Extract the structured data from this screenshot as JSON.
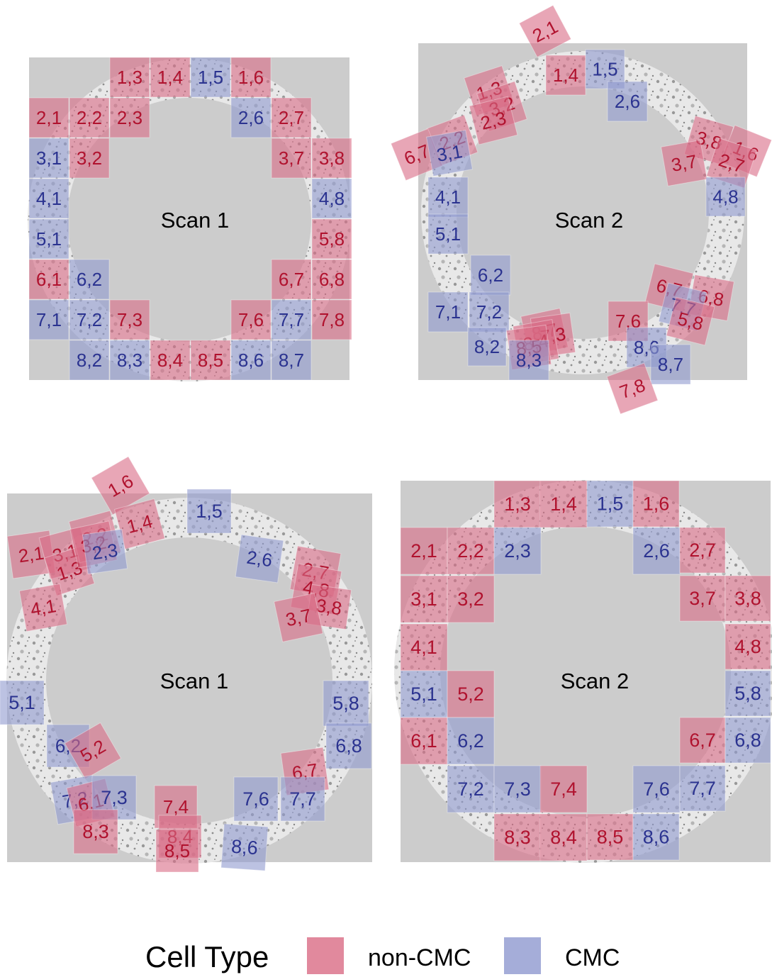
{
  "colors": {
    "panel_bg": "#cccccc",
    "ring_fill": "#e8e8e8",
    "non_cmc_fill": "#d96b85",
    "non_cmc_text": "#b0122e",
    "cmc_fill": "#8f99cf",
    "cmc_text": "#2b3390"
  },
  "legend": {
    "title": "Cell Type",
    "items": [
      {
        "label": "non-CMC",
        "type": "n"
      },
      {
        "label": "CMC",
        "type": "c"
      }
    ]
  },
  "panels": [
    {
      "label": "Scan 1",
      "cells": [
        {
          "t": "1,3",
          "c": "n"
        },
        {
          "t": "1,4",
          "c": "n"
        },
        {
          "t": "1,5",
          "c": "c"
        },
        {
          "t": "1,6",
          "c": "n"
        },
        {
          "t": "2,1",
          "c": "n"
        },
        {
          "t": "2,2",
          "c": "n"
        },
        {
          "t": "2,3",
          "c": "n"
        },
        {
          "t": "2,6",
          "c": "c"
        },
        {
          "t": "2,7",
          "c": "n"
        },
        {
          "t": "3,1",
          "c": "c"
        },
        {
          "t": "3,2",
          "c": "n"
        },
        {
          "t": "3,7",
          "c": "n"
        },
        {
          "t": "3,8",
          "c": "n"
        },
        {
          "t": "4,1",
          "c": "c"
        },
        {
          "t": "4,8",
          "c": "c"
        },
        {
          "t": "5,1",
          "c": "c"
        },
        {
          "t": "5,8",
          "c": "n"
        },
        {
          "t": "6,1",
          "c": "n"
        },
        {
          "t": "6,2",
          "c": "c"
        },
        {
          "t": "6,7",
          "c": "n"
        },
        {
          "t": "6,8",
          "c": "n"
        },
        {
          "t": "7,1",
          "c": "c"
        },
        {
          "t": "7,2",
          "c": "c"
        },
        {
          "t": "7,3",
          "c": "n"
        },
        {
          "t": "7,6",
          "c": "n"
        },
        {
          "t": "7,7",
          "c": "c"
        },
        {
          "t": "7,8",
          "c": "n"
        },
        {
          "t": "8,2",
          "c": "c"
        },
        {
          "t": "8,3",
          "c": "c"
        },
        {
          "t": "8,4",
          "c": "n"
        },
        {
          "t": "8,5",
          "c": "n"
        },
        {
          "t": "8,6",
          "c": "c"
        },
        {
          "t": "8,7",
          "c": "c"
        }
      ]
    },
    {
      "label": "Scan 2",
      "cells": [
        {
          "t": "2,1",
          "c": "n"
        },
        {
          "t": "1,4",
          "c": "n"
        },
        {
          "t": "1,5",
          "c": "c"
        },
        {
          "t": "2,6",
          "c": "c"
        },
        {
          "t": "1,3",
          "c": "n"
        },
        {
          "t": "3,2",
          "c": "n"
        },
        {
          "t": "2,3",
          "c": "n"
        },
        {
          "t": "2,2",
          "c": "n"
        },
        {
          "t": "6,7",
          "c": "n"
        },
        {
          "t": "3,1",
          "c": "c"
        },
        {
          "t": "3,8",
          "c": "n"
        },
        {
          "t": "1,6",
          "c": "n"
        },
        {
          "t": "3,7",
          "c": "n"
        },
        {
          "t": "2,7",
          "c": "n"
        },
        {
          "t": "4,8",
          "c": "c"
        },
        {
          "t": "4,1",
          "c": "c"
        },
        {
          "t": "5,1",
          "c": "c"
        },
        {
          "t": "6,2",
          "c": "c"
        },
        {
          "t": "7,1",
          "c": "c"
        },
        {
          "t": "7,2",
          "c": "c"
        },
        {
          "t": "6,7",
          "c": "n"
        },
        {
          "t": "6,8",
          "c": "n"
        },
        {
          "t": "7,7",
          "c": "c"
        },
        {
          "t": "5,8",
          "c": "n"
        },
        {
          "t": "7,6",
          "c": "n"
        },
        {
          "t": "8,7",
          "c": "n"
        },
        {
          "t": "7,3",
          "c": "n"
        },
        {
          "t": "8,4",
          "c": "n"
        },
        {
          "t": "8,5",
          "c": "n"
        },
        {
          "t": "8,2",
          "c": "c"
        },
        {
          "t": "8,3",
          "c": "c"
        },
        {
          "t": "8,6",
          "c": "c"
        },
        {
          "t": "8,7",
          "c": "c"
        },
        {
          "t": "7,8",
          "c": "n"
        }
      ]
    },
    {
      "label": "Scan 1",
      "cells": [
        {
          "t": "1,6",
          "c": "n"
        },
        {
          "t": "1,4",
          "c": "n"
        },
        {
          "t": "1,5",
          "c": "c"
        },
        {
          "t": "2,1",
          "c": "n"
        },
        {
          "t": "3,1",
          "c": "n"
        },
        {
          "t": "1,3",
          "c": "n"
        },
        {
          "t": "2,2",
          "c": "n"
        },
        {
          "t": "3,2",
          "c": "n"
        },
        {
          "t": "2,3",
          "c": "c"
        },
        {
          "t": "4,1",
          "c": "n"
        },
        {
          "t": "2,6",
          "c": "c"
        },
        {
          "t": "2,7",
          "c": "n"
        },
        {
          "t": "4,8",
          "c": "n"
        },
        {
          "t": "3,8",
          "c": "n"
        },
        {
          "t": "3,7",
          "c": "n"
        },
        {
          "t": "5,1",
          "c": "c"
        },
        {
          "t": "5,8",
          "c": "c"
        },
        {
          "t": "6,2",
          "c": "c"
        },
        {
          "t": "5,2",
          "c": "n"
        },
        {
          "t": "6,8",
          "c": "c"
        },
        {
          "t": "6,7",
          "c": "n"
        },
        {
          "t": "7,2",
          "c": "c"
        },
        {
          "t": "6,1",
          "c": "n"
        },
        {
          "t": "7,3",
          "c": "c"
        },
        {
          "t": "8,3",
          "c": "n"
        },
        {
          "t": "7,4",
          "c": "n"
        },
        {
          "t": "8,4",
          "c": "n"
        },
        {
          "t": "8,5",
          "c": "n"
        },
        {
          "t": "7,6",
          "c": "c"
        },
        {
          "t": "7,7",
          "c": "c"
        },
        {
          "t": "8,6",
          "c": "c"
        }
      ]
    },
    {
      "label": "Scan 2",
      "cells": [
        {
          "t": "1,3",
          "c": "n"
        },
        {
          "t": "1,4",
          "c": "n"
        },
        {
          "t": "1,5",
          "c": "c"
        },
        {
          "t": "1,6",
          "c": "n"
        },
        {
          "t": "2,1",
          "c": "n"
        },
        {
          "t": "2,2",
          "c": "n"
        },
        {
          "t": "2,3",
          "c": "c"
        },
        {
          "t": "2,6",
          "c": "c"
        },
        {
          "t": "2,7",
          "c": "n"
        },
        {
          "t": "3,1",
          "c": "n"
        },
        {
          "t": "3,2",
          "c": "n"
        },
        {
          "t": "3,7",
          "c": "n"
        },
        {
          "t": "3,8",
          "c": "n"
        },
        {
          "t": "4,1",
          "c": "n"
        },
        {
          "t": "4,8",
          "c": "n"
        },
        {
          "t": "5,1",
          "c": "c"
        },
        {
          "t": "5,2",
          "c": "n"
        },
        {
          "t": "5,8",
          "c": "c"
        },
        {
          "t": "6,1",
          "c": "n"
        },
        {
          "t": "6,2",
          "c": "c"
        },
        {
          "t": "6,7",
          "c": "n"
        },
        {
          "t": "6,8",
          "c": "c"
        },
        {
          "t": "7,2",
          "c": "c"
        },
        {
          "t": "7,3",
          "c": "c"
        },
        {
          "t": "7,4",
          "c": "n"
        },
        {
          "t": "7,6",
          "c": "c"
        },
        {
          "t": "7,7",
          "c": "c"
        },
        {
          "t": "8,3",
          "c": "n"
        },
        {
          "t": "8,4",
          "c": "n"
        },
        {
          "t": "8,5",
          "c": "n"
        },
        {
          "t": "8,6",
          "c": "c"
        }
      ]
    }
  ]
}
